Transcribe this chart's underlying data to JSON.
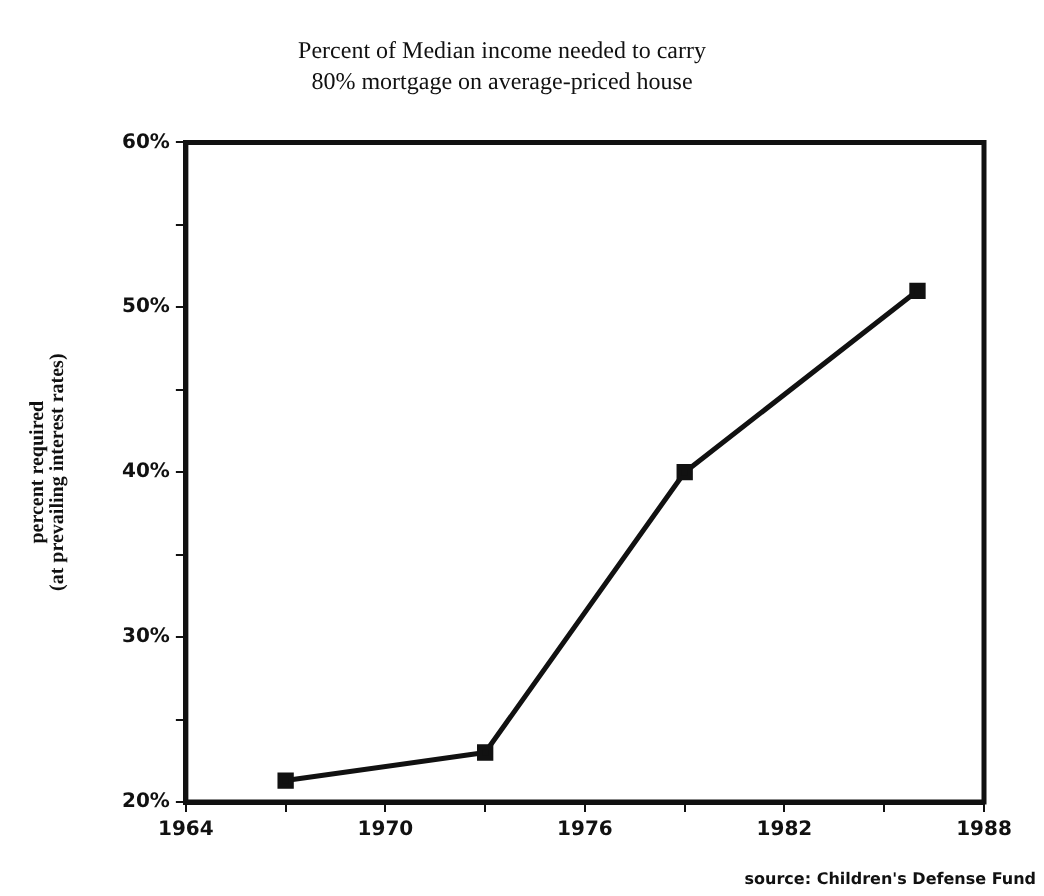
{
  "chart_data": {
    "type": "line",
    "title": "Percent of Median income needed to carry\n80% mortgage on average-priced house",
    "ylabel": "percent required\n(at prevailing interest rates)",
    "annotations": [
      "source: Children's Defense Fund"
    ],
    "x": [
      1967,
      1973,
      1979,
      1986
    ],
    "series": [
      {
        "color": "#111111",
        "values": [
          21.3,
          23,
          40,
          51
        ]
      }
    ],
    "xlim": [
      1964,
      1988
    ],
    "xticks": [
      1964,
      {
        "value": 1967,
        "label": null
      },
      1970,
      {
        "value": 1973,
        "label": null
      },
      1976,
      {
        "value": 1979,
        "label": null
      },
      1982,
      {
        "value": 1985,
        "label": null
      },
      1988
    ],
    "ylim": [
      20,
      60
    ],
    "yticks": [
      {
        "value": 20,
        "label": "20%"
      },
      {
        "value": 25,
        "label": null
      },
      {
        "value": 30,
        "label": "30%"
      },
      {
        "value": 35,
        "label": null
      },
      {
        "value": 40,
        "label": "40%"
      },
      {
        "value": 45,
        "label": null
      },
      {
        "value": 50,
        "label": "50%"
      },
      {
        "value": 55,
        "label": null
      },
      {
        "value": 60,
        "label": "60%"
      }
    ],
    "grid": false,
    "legend": false,
    "marker": "square",
    "line_style": "solid"
  }
}
